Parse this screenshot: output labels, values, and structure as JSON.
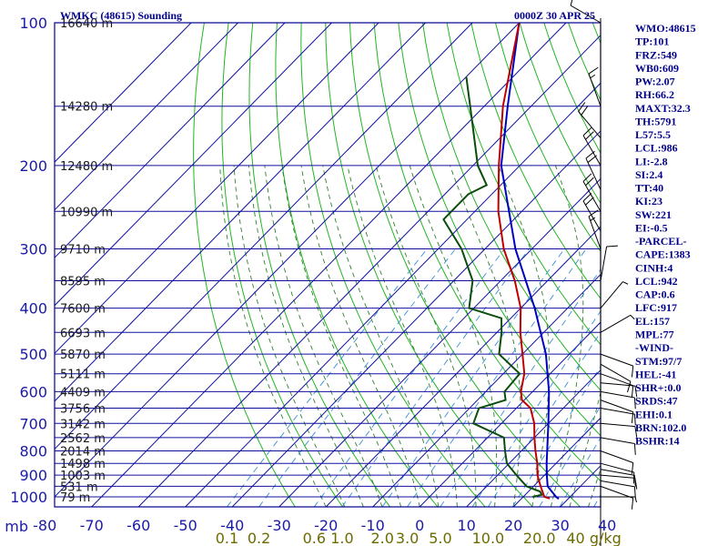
{
  "header": {
    "title": "WMKC (48615) Sounding",
    "time": "0000Z 30 APR 25"
  },
  "indices": [
    "WMO:48615",
    "TP:101",
    "FRZ:549",
    "WB0:609",
    "PW:2.07",
    "RH:66.2",
    "MAXT:32.3",
    "TH:5791",
    "L57:5.5",
    "LCL:986",
    "LI:-2.8",
    "SI:2.4",
    "TT:40",
    "KI:23",
    "SW:221",
    "EI:-0.5",
    "-PARCEL-",
    "CAPE:1383",
    "CINH:4",
    "LCL:942",
    "CAP:0.6",
    "LFC:917",
    "EL:157",
    "MPL:77",
    "-WIND-",
    "STM:97/7",
    "HEL:-41",
    "SHR+:0.0",
    "SRDS:47",
    "EHI:0.1",
    "BRN:102.0",
    "BSHR:14"
  ],
  "colors": {
    "frame": "#00008b",
    "isobar": "#1010a0",
    "isotherm": "#1010a0",
    "dry_adiabat": "#22b522",
    "moist_adiabat": "#2f7f2f",
    "mixing_ratio": "#3a8fd8",
    "temperature": "#c00000",
    "dewpoint": "#0b4d0b",
    "parcel": "#0000c0",
    "wind": "#000000"
  },
  "chart_data": {
    "type": "skew-t",
    "title": "WMKC (48615) Sounding",
    "subtitle": "0000Z 30 APR 25",
    "ylabel": "mb",
    "xlabel": "",
    "pressure_levels": [
      100,
      200,
      300,
      400,
      500,
      600,
      700,
      800,
      900,
      1000
    ],
    "pressure_labels": [
      "100",
      "200",
      "300",
      "400",
      "500",
      "600",
      "700",
      "800",
      "900",
      "1000"
    ],
    "temperature_ticks": [
      -80,
      -70,
      -60,
      -50,
      -40,
      -30,
      -20,
      -10,
      0,
      10,
      20,
      30,
      40
    ],
    "temperature_labels": [
      "-80",
      "-70",
      "-60",
      "-50",
      "-40",
      "-30",
      "-20",
      "-10",
      "0",
      "10",
      "20",
      "30",
      "40"
    ],
    "mixing_ratio_labels": [
      "0.1",
      "0.2",
      "0.6",
      "1.0",
      "2.0",
      "3.0",
      "5.0",
      "10.0",
      "20.0",
      "40 g/kg"
    ],
    "height_levels": [
      {
        "p": 100,
        "label": "16640 m"
      },
      {
        "p": 150,
        "label": "14280 m"
      },
      {
        "p": 200,
        "label": "12480 m"
      },
      {
        "p": 250,
        "label": "10990 m"
      },
      {
        "p": 300,
        "label": "9710 m"
      },
      {
        "p": 350,
        "label": "8595 m"
      },
      {
        "p": 400,
        "label": "7600 m"
      },
      {
        "p": 450,
        "label": "6693 m"
      },
      {
        "p": 500,
        "label": "5870 m"
      },
      {
        "p": 550,
        "label": "5111 m"
      },
      {
        "p": 600,
        "label": "4409 m"
      },
      {
        "p": 650,
        "label": "3756 m"
      },
      {
        "p": 700,
        "label": "3142 m"
      },
      {
        "p": 750,
        "label": "2562 m"
      },
      {
        "p": 800,
        "label": "2014 m"
      },
      {
        "p": 850,
        "label": "1498 m"
      },
      {
        "p": 900,
        "label": "1003 m"
      },
      {
        "p": 950,
        "label": "531 m"
      },
      {
        "p": 1000,
        "label": "79 m"
      }
    ],
    "temperature_profile": [
      {
        "p": 1008,
        "t": 26.0
      },
      {
        "p": 1000,
        "t": 24.5
      },
      {
        "p": 950,
        "t": 21.5
      },
      {
        "p": 925,
        "t": 20.0
      },
      {
        "p": 900,
        "t": 18.5
      },
      {
        "p": 850,
        "t": 16.0
      },
      {
        "p": 800,
        "t": 13.0
      },
      {
        "p": 750,
        "t": 10.0
      },
      {
        "p": 700,
        "t": 7.0
      },
      {
        "p": 650,
        "t": 3.0
      },
      {
        "p": 625,
        "t": -0.5
      },
      {
        "p": 600,
        "t": -2.5
      },
      {
        "p": 550,
        "t": -5.5
      },
      {
        "p": 500,
        "t": -10.0
      },
      {
        "p": 450,
        "t": -15.0
      },
      {
        "p": 400,
        "t": -20.0
      },
      {
        "p": 350,
        "t": -27.0
      },
      {
        "p": 300,
        "t": -36.0
      },
      {
        "p": 250,
        "t": -45.0
      },
      {
        "p": 200,
        "t": -54.5
      },
      {
        "p": 150,
        "t": -66.0
      },
      {
        "p": 100,
        "t": -80.0
      }
    ],
    "dewpoint_profile": [
      {
        "p": 1000,
        "t": 22.0
      },
      {
        "p": 990,
        "t": 23.5
      },
      {
        "p": 975,
        "t": 22.5
      },
      {
        "p": 950,
        "t": 18.5
      },
      {
        "p": 900,
        "t": 14.0
      },
      {
        "p": 850,
        "t": 9.5
      },
      {
        "p": 800,
        "t": 6.5
      },
      {
        "p": 750,
        "t": 3.5
      },
      {
        "p": 700,
        "t": -6.0
      },
      {
        "p": 650,
        "t": -8.0
      },
      {
        "p": 625,
        "t": -4.0
      },
      {
        "p": 600,
        "t": -6.0
      },
      {
        "p": 550,
        "t": -6.5
      },
      {
        "p": 500,
        "t": -15.0
      },
      {
        "p": 450,
        "t": -19.0
      },
      {
        "p": 420,
        "t": -22.0
      },
      {
        "p": 400,
        "t": -31.0
      },
      {
        "p": 350,
        "t": -36.0
      },
      {
        "p": 300,
        "t": -45.0
      },
      {
        "p": 260,
        "t": -55.0
      },
      {
        "p": 230,
        "t": -55.0
      },
      {
        "p": 220,
        "t": -53.0
      },
      {
        "p": 200,
        "t": -59.0
      },
      {
        "p": 150,
        "t": -73.0
      },
      {
        "p": 130,
        "t": -80.0
      }
    ],
    "parcel_profile": [
      {
        "p": 1010,
        "t": 28.0
      },
      {
        "p": 1000,
        "t": 27.0
      },
      {
        "p": 950,
        "t": 23.0
      },
      {
        "p": 900,
        "t": 20.5
      },
      {
        "p": 850,
        "t": 18.0
      },
      {
        "p": 800,
        "t": 15.5
      },
      {
        "p": 700,
        "t": 10.0
      },
      {
        "p": 600,
        "t": 3.5
      },
      {
        "p": 500,
        "t": -5.0
      },
      {
        "p": 400,
        "t": -17.0
      },
      {
        "p": 300,
        "t": -33.5
      },
      {
        "p": 200,
        "t": -54.0
      },
      {
        "p": 150,
        "t": -65.0
      },
      {
        "p": 100,
        "t": -80.0
      }
    ],
    "wind_barbs": [
      {
        "p": 1000,
        "dir": 90,
        "spd": 5
      },
      {
        "p": 950,
        "dir": 110,
        "spd": 10
      },
      {
        "p": 925,
        "dir": 100,
        "spd": 10
      },
      {
        "p": 900,
        "dir": 95,
        "spd": 10
      },
      {
        "p": 875,
        "dir": 100,
        "spd": 10
      },
      {
        "p": 850,
        "dir": 105,
        "spd": 10
      },
      {
        "p": 800,
        "dir": 110,
        "spd": 10
      },
      {
        "p": 750,
        "dir": 100,
        "spd": 10
      },
      {
        "p": 700,
        "dir": 95,
        "spd": 10
      },
      {
        "p": 650,
        "dir": 100,
        "spd": 10
      },
      {
        "p": 625,
        "dir": 110,
        "spd": 10
      },
      {
        "p": 600,
        "dir": 100,
        "spd": 10
      },
      {
        "p": 575,
        "dir": 95,
        "spd": 10
      },
      {
        "p": 550,
        "dir": 110,
        "spd": 10
      },
      {
        "p": 525,
        "dir": 120,
        "spd": 10
      },
      {
        "p": 500,
        "dir": 110,
        "spd": 10
      },
      {
        "p": 450,
        "dir": 60,
        "spd": 5
      },
      {
        "p": 400,
        "dir": 40,
        "spd": 5
      },
      {
        "p": 350,
        "dir": 10,
        "spd": 10
      },
      {
        "p": 300,
        "dir": 340,
        "spd": 15
      },
      {
        "p": 275,
        "dir": 330,
        "spd": 20
      },
      {
        "p": 250,
        "dir": 330,
        "spd": 20
      },
      {
        "p": 225,
        "dir": 335,
        "spd": 20
      },
      {
        "p": 200,
        "dir": 330,
        "spd": 20
      },
      {
        "p": 175,
        "dir": 320,
        "spd": 20
      },
      {
        "p": 150,
        "dir": 340,
        "spd": 15
      },
      {
        "p": 100,
        "dir": 300,
        "spd": 5
      }
    ],
    "grid": true
  }
}
